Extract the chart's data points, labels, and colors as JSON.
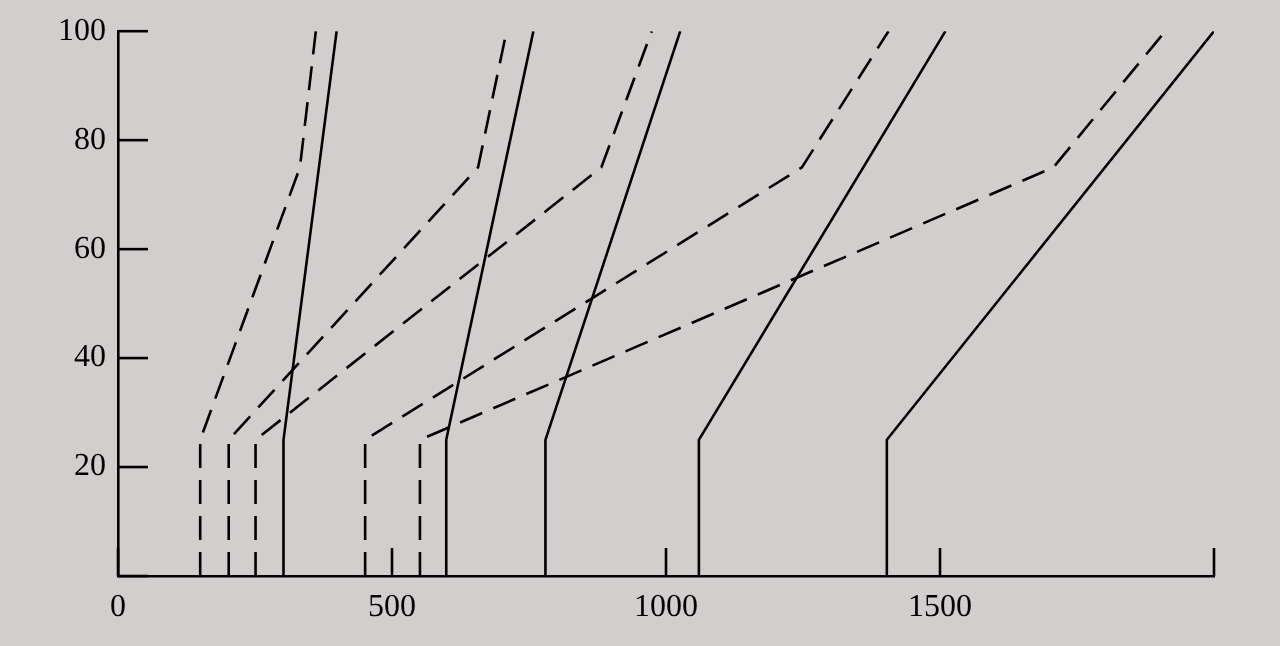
{
  "chart_data": {
    "type": "line",
    "xlim": [
      0,
      2000
    ],
    "ylim": [
      0,
      100
    ],
    "xticks": [
      0,
      500,
      1000,
      1500,
      {
        "value": 2000,
        "label": null
      }
    ],
    "yticks": [
      {
        "value": 0,
        "label": null
      },
      20,
      40,
      60,
      80,
      100
    ],
    "grid": false,
    "legend": false,
    "marker": "none",
    "series": [
      {
        "x": [
          150,
          150,
          332,
          361
        ],
        "values": [
          0,
          25,
          75,
          100
        ],
        "color": "#000000",
        "line_style": "dashed"
      },
      {
        "x": [
          302,
          302,
          399
        ],
        "values": [
          0,
          25,
          100
        ],
        "color": "#000000",
        "line_style": "solid"
      },
      {
        "x": [
          202,
          202,
          657,
          709
        ],
        "values": [
          0,
          25,
          75,
          100
        ],
        "color": "#000000",
        "line_style": "dashed"
      },
      {
        "x": [
          251,
          251,
          882,
          974
        ],
        "values": [
          0,
          25,
          75,
          100
        ],
        "color": "#000000",
        "line_style": "dashed"
      },
      {
        "x": [
          451,
          451,
          1248,
          1406
        ],
        "values": [
          0,
          25,
          75,
          100
        ],
        "color": "#000000",
        "line_style": "dashed"
      },
      {
        "x": [
          551,
          551,
          1707,
          1911
        ],
        "values": [
          0,
          25,
          75,
          100
        ],
        "color": "#000000",
        "line_style": "dashed"
      },
      {
        "x": [
          599,
          599,
          758
        ],
        "values": [
          0,
          25,
          100
        ],
        "color": "#000000",
        "line_style": "solid"
      },
      {
        "x": [
          780,
          780,
          1026
        ],
        "values": [
          0,
          25,
          100
        ],
        "color": "#000000",
        "line_style": "solid"
      },
      {
        "x": [
          1060,
          1060,
          1510
        ],
        "values": [
          0,
          25,
          100
        ],
        "color": "#000000",
        "line_style": "solid"
      },
      {
        "x": [
          1403,
          1403,
          2000
        ],
        "values": [
          0,
          25,
          100
        ],
        "color": "#000000",
        "line_style": "solid"
      }
    ]
  }
}
